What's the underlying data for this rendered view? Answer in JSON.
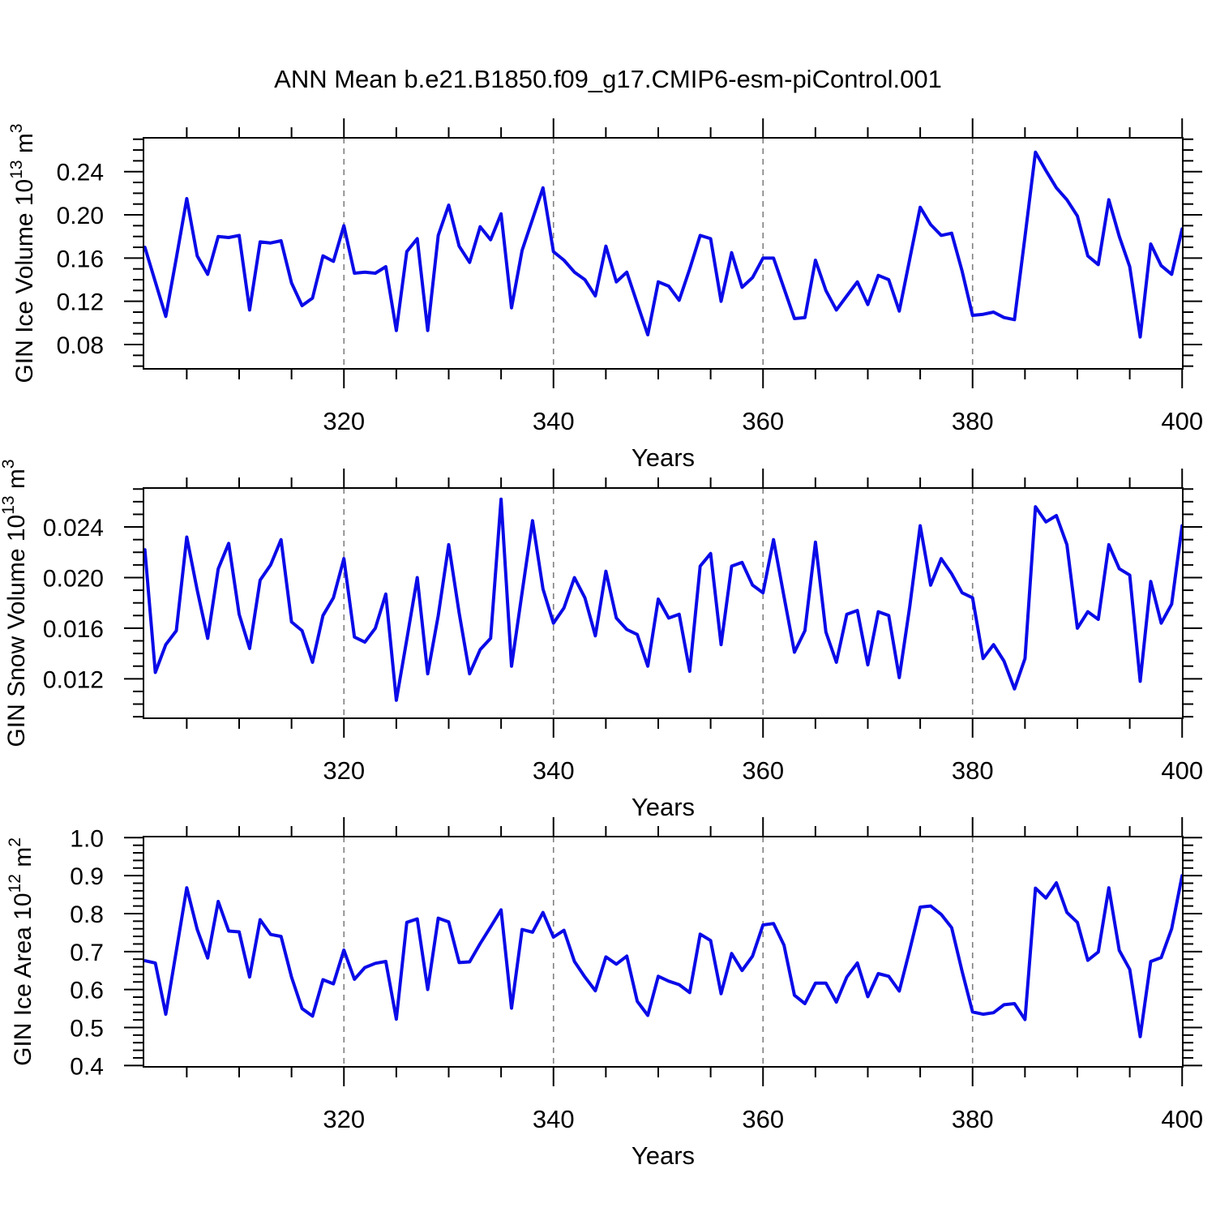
{
  "title": "ANN Mean b.e21.B1850.f09_g17.CMIP6-esm-piControl.001",
  "colors": {
    "line": "#0a0ae8",
    "grid": "#808080",
    "axis": "#000000",
    "text": "#000000"
  },
  "years": [
    301,
    302,
    303,
    304,
    305,
    306,
    307,
    308,
    309,
    310,
    311,
    312,
    313,
    314,
    315,
    316,
    317,
    318,
    319,
    320,
    321,
    322,
    323,
    324,
    325,
    326,
    327,
    328,
    329,
    330,
    331,
    332,
    333,
    334,
    335,
    336,
    337,
    338,
    339,
    340,
    341,
    342,
    343,
    344,
    345,
    346,
    347,
    348,
    349,
    350,
    351,
    352,
    353,
    354,
    355,
    356,
    357,
    358,
    359,
    360,
    361,
    362,
    363,
    364,
    365,
    366,
    367,
    368,
    369,
    370,
    371,
    372,
    373,
    374,
    375,
    376,
    377,
    378,
    379,
    380,
    381,
    382,
    383,
    384,
    385,
    386,
    387,
    388,
    389,
    390,
    391,
    392,
    393,
    394,
    395,
    396,
    397,
    398,
    399,
    400
  ],
  "x_axis": {
    "label": "Years",
    "lim": [
      300.87,
      400.06
    ],
    "ticks": [
      320,
      340,
      360,
      380,
      400
    ],
    "tick_labels": [
      "320",
      "340",
      "360",
      "380",
      "400"
    ],
    "minor_start": 305,
    "minor_end": 395,
    "minor_step": 5,
    "grid": [
      320,
      340,
      360,
      380
    ]
  },
  "chart_data": [
    {
      "type": "line",
      "name": "ice-volume",
      "ylabel": "GIN Ice Volume 10^13 m^3",
      "ylabel_rich": [
        {
          "t": "GIN Ice Volume 10",
          "sup": false
        },
        {
          "t": "13",
          "sup": true
        },
        {
          "t": " m",
          "sup": false
        },
        {
          "t": "3",
          "sup": true
        }
      ],
      "ylim": [
        0.0575,
        0.2713
      ],
      "yticks": [
        0.08,
        0.12,
        0.16,
        0.2,
        0.24
      ],
      "ytick_labels": [
        "0.08",
        "0.12",
        "0.16",
        "0.20",
        "0.24"
      ],
      "yminor_start": 0.06,
      "yminor_end": 0.27,
      "yminor_step": 0.01,
      "values": [
        0.17,
        0.138,
        0.106,
        0.16,
        0.215,
        0.162,
        0.145,
        0.18,
        0.179,
        0.181,
        0.112,
        0.175,
        0.174,
        0.176,
        0.137,
        0.116,
        0.123,
        0.162,
        0.157,
        0.19,
        0.146,
        0.147,
        0.146,
        0.152,
        0.093,
        0.166,
        0.178,
        0.093,
        0.181,
        0.209,
        0.171,
        0.156,
        0.189,
        0.177,
        0.201,
        0.114,
        0.167,
        0.196,
        0.225,
        0.166,
        0.158,
        0.147,
        0.14,
        0.125,
        0.171,
        0.138,
        0.147,
        0.118,
        0.089,
        0.138,
        0.134,
        0.121,
        0.15,
        0.181,
        0.178,
        0.12,
        0.165,
        0.133,
        0.142,
        0.16,
        0.16,
        0.132,
        0.104,
        0.105,
        0.158,
        0.13,
        0.112,
        0.125,
        0.138,
        0.117,
        0.144,
        0.14,
        0.111,
        0.159,
        0.207,
        0.191,
        0.181,
        0.183,
        0.148,
        0.107,
        0.108,
        0.11,
        0.105,
        0.103,
        0.18,
        0.258,
        0.241,
        0.225,
        0.214,
        0.199,
        0.162,
        0.154,
        0.214,
        0.18,
        0.152,
        0.087,
        0.173,
        0.153,
        0.145,
        0.187
      ]
    },
    {
      "type": "line",
      "name": "snow-volume",
      "ylabel": "GIN Snow Volume 10^13 m^3",
      "ylabel_rich": [
        {
          "t": "GIN Snow Volume 10",
          "sup": false
        },
        {
          "t": "13",
          "sup": true
        },
        {
          "t": " m",
          "sup": false
        },
        {
          "t": "3",
          "sup": true
        }
      ],
      "ylim": [
        0.00888,
        0.02708
      ],
      "yticks": [
        0.012,
        0.016,
        0.02,
        0.024
      ],
      "ytick_labels": [
        "0.012",
        "0.016",
        "0.020",
        "0.024"
      ],
      "yminor_start": 0.009,
      "yminor_end": 0.027,
      "yminor_step": 0.001,
      "values": [
        0.0222,
        0.0125,
        0.0147,
        0.0158,
        0.0232,
        0.019,
        0.0152,
        0.0207,
        0.0227,
        0.0171,
        0.0144,
        0.0198,
        0.021,
        0.023,
        0.0165,
        0.0158,
        0.0133,
        0.017,
        0.0184,
        0.0215,
        0.0153,
        0.0149,
        0.016,
        0.0187,
        0.0103,
        0.0151,
        0.02,
        0.0124,
        0.017,
        0.0226,
        0.0172,
        0.0124,
        0.0143,
        0.0152,
        0.0262,
        0.013,
        0.0188,
        0.0245,
        0.0191,
        0.0164,
        0.0176,
        0.02,
        0.0184,
        0.0154,
        0.0205,
        0.0168,
        0.0159,
        0.0155,
        0.013,
        0.0183,
        0.0168,
        0.0171,
        0.0126,
        0.0209,
        0.0219,
        0.0147,
        0.0209,
        0.0212,
        0.0194,
        0.0188,
        0.023,
        0.0185,
        0.0141,
        0.0158,
        0.0228,
        0.0157,
        0.0133,
        0.0171,
        0.0174,
        0.0131,
        0.0173,
        0.017,
        0.0121,
        0.0177,
        0.0241,
        0.0194,
        0.0215,
        0.0203,
        0.0188,
        0.0184,
        0.0136,
        0.0147,
        0.0134,
        0.0112,
        0.0136,
        0.0256,
        0.0244,
        0.0249,
        0.0226,
        0.016,
        0.0173,
        0.0167,
        0.0226,
        0.0207,
        0.0202,
        0.0118,
        0.0197,
        0.0164,
        0.0179,
        0.0241
      ]
    },
    {
      "type": "line",
      "name": "ice-area",
      "ylabel": "GIN Ice Area 10^12 m^2",
      "ylabel_rich": [
        {
          "t": "GIN Ice Area 10",
          "sup": false
        },
        {
          "t": "12",
          "sup": true
        },
        {
          "t": " m",
          "sup": false
        },
        {
          "t": "2",
          "sup": true
        }
      ],
      "ylim": [
        0.3964,
        1.0028
      ],
      "yticks": [
        0.4,
        0.5,
        0.6,
        0.7,
        0.8,
        0.9,
        1.0
      ],
      "ytick_labels": [
        "0.4",
        "0.5",
        "0.6",
        "0.7",
        "0.8",
        "0.9",
        "1.0"
      ],
      "yminor_start": 0.4,
      "yminor_end": 1.0,
      "yminor_step": 0.02,
      "values": [
        0.676,
        0.67,
        0.535,
        0.702,
        0.868,
        0.758,
        0.683,
        0.832,
        0.754,
        0.752,
        0.633,
        0.784,
        0.745,
        0.74,
        0.633,
        0.55,
        0.53,
        0.626,
        0.615,
        0.704,
        0.627,
        0.658,
        0.669,
        0.674,
        0.522,
        0.777,
        0.786,
        0.6,
        0.788,
        0.778,
        0.671,
        0.673,
        0.721,
        0.765,
        0.81,
        0.551,
        0.758,
        0.751,
        0.803,
        0.738,
        0.756,
        0.674,
        0.633,
        0.597,
        0.686,
        0.667,
        0.688,
        0.569,
        0.532,
        0.635,
        0.622,
        0.613,
        0.592,
        0.746,
        0.729,
        0.589,
        0.695,
        0.65,
        0.688,
        0.77,
        0.774,
        0.717,
        0.585,
        0.563,
        0.617,
        0.617,
        0.567,
        0.633,
        0.67,
        0.581,
        0.642,
        0.635,
        0.596,
        0.704,
        0.817,
        0.82,
        0.798,
        0.763,
        0.648,
        0.541,
        0.535,
        0.539,
        0.56,
        0.563,
        0.521,
        0.867,
        0.841,
        0.881,
        0.803,
        0.777,
        0.677,
        0.699,
        0.868,
        0.703,
        0.653,
        0.476,
        0.674,
        0.684,
        0.76,
        0.9
      ]
    }
  ]
}
